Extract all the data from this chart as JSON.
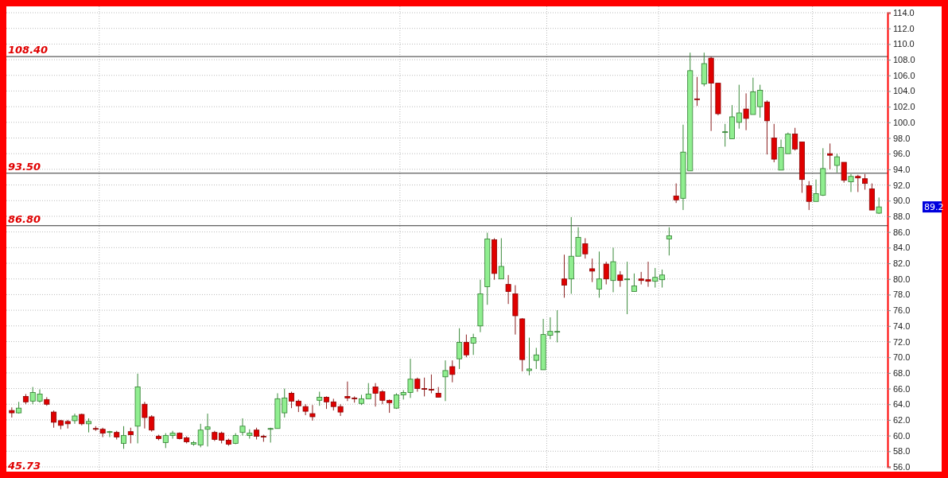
{
  "chart_data": {
    "type": "candlestick",
    "categories": [
      null,
      null,
      null,
      null,
      null,
      null,
      null,
      null,
      null,
      null,
      null,
      null,
      null,
      null,
      null,
      null,
      null,
      null,
      null,
      null,
      null,
      null,
      null,
      null,
      null,
      null,
      null,
      null,
      null,
      null,
      null,
      null,
      null,
      null,
      null,
      null,
      null,
      null,
      null,
      null,
      null,
      null,
      null,
      null,
      null,
      null,
      null,
      null,
      null,
      null,
      null,
      null,
      null,
      null,
      null,
      null,
      null,
      null,
      null,
      null,
      null,
      null,
      null,
      null,
      null,
      null,
      null,
      null,
      null,
      null,
      null,
      null,
      null,
      null,
      null,
      null,
      null,
      null,
      null,
      null,
      null,
      null,
      null,
      null,
      null,
      null,
      null,
      null,
      null,
      null,
      null,
      null,
      null,
      null,
      null,
      null,
      null,
      null,
      null,
      null,
      null,
      null,
      null,
      null,
      null,
      null,
      null,
      null,
      null,
      null,
      null,
      null,
      null,
      null,
      null,
      null,
      null,
      null,
      null,
      null,
      null,
      null,
      null,
      null,
      null
    ],
    "ohlc": [
      [
        63.2,
        63.6,
        62.3,
        62.9
      ],
      [
        62.9,
        64.3,
        62.8,
        63.5
      ],
      [
        65.0,
        65.3,
        64.0,
        64.3
      ],
      [
        64.4,
        66.2,
        64.0,
        65.5
      ],
      [
        64.4,
        65.9,
        64.2,
        65.3
      ],
      [
        64.6,
        64.9,
        63.8,
        64.0
      ],
      [
        63.0,
        63.2,
        61.0,
        61.7
      ],
      [
        61.9,
        62.0,
        60.8,
        61.3
      ],
      [
        61.8,
        62.0,
        60.9,
        61.5
      ],
      [
        61.9,
        62.8,
        61.5,
        62.5
      ],
      [
        62.7,
        62.8,
        61.3,
        61.5
      ],
      [
        61.5,
        62.2,
        60.4,
        61.8
      ],
      [
        60.9,
        61.2,
        60.6,
        60.8
      ],
      [
        60.8,
        61.0,
        59.8,
        60.3
      ],
      [
        60.4,
        60.6,
        59.8,
        60.5
      ],
      [
        60.4,
        60.6,
        59.5,
        59.8
      ],
      [
        59.0,
        61.2,
        58.3,
        60.0
      ],
      [
        60.5,
        61.0,
        59.0,
        60.1
      ],
      [
        61.2,
        67.9,
        59.0,
        66.2
      ],
      [
        64.0,
        64.3,
        60.9,
        62.3
      ],
      [
        62.4,
        62.6,
        60.5,
        60.7
      ],
      [
        59.9,
        60.1,
        59.4,
        59.6
      ],
      [
        59.1,
        60.3,
        58.4,
        60.0
      ],
      [
        60.0,
        60.6,
        59.6,
        60.3
      ],
      [
        60.3,
        60.4,
        59.5,
        59.6
      ],
      [
        59.7,
        59.9,
        59.0,
        59.2
      ],
      [
        58.9,
        59.3,
        58.7,
        59.1
      ],
      [
        58.8,
        61.5,
        58.5,
        60.7
      ],
      [
        60.8,
        62.8,
        58.6,
        61.1
      ],
      [
        60.4,
        60.6,
        59.3,
        59.5
      ],
      [
        60.3,
        60.5,
        59.0,
        59.4
      ],
      [
        59.4,
        59.6,
        58.7,
        58.9
      ],
      [
        59.0,
        60.3,
        58.9,
        60.0
      ],
      [
        60.4,
        62.2,
        60.0,
        61.2
      ],
      [
        60.0,
        60.8,
        59.6,
        60.3
      ],
      [
        60.7,
        61.0,
        59.5,
        59.9
      ],
      [
        59.9,
        60.1,
        59.2,
        59.8
      ],
      [
        60.8,
        61.0,
        59.1,
        60.9
      ],
      [
        60.9,
        65.4,
        60.9,
        64.7
      ],
      [
        62.9,
        66.0,
        62.3,
        64.8
      ],
      [
        65.4,
        65.6,
        63.5,
        64.4
      ],
      [
        64.4,
        64.6,
        63.0,
        63.8
      ],
      [
        63.7,
        64.0,
        62.6,
        63.1
      ],
      [
        62.8,
        63.9,
        61.9,
        62.4
      ],
      [
        64.5,
        65.6,
        63.8,
        64.9
      ],
      [
        64.9,
        65.0,
        63.4,
        64.3
      ],
      [
        64.3,
        64.7,
        63.2,
        63.7
      ],
      [
        63.7,
        64.0,
        62.5,
        63.0
      ],
      [
        65.0,
        66.9,
        64.4,
        64.8
      ],
      [
        64.8,
        65.0,
        64.2,
        64.7
      ],
      [
        64.1,
        65.2,
        63.9,
        64.7
      ],
      [
        64.7,
        66.7,
        64.7,
        65.3
      ],
      [
        66.2,
        66.7,
        63.7,
        65.4
      ],
      [
        65.6,
        65.8,
        64.0,
        64.5
      ],
      [
        64.5,
        64.6,
        62.9,
        64.2
      ],
      [
        63.5,
        65.4,
        63.4,
        65.2
      ],
      [
        65.2,
        65.8,
        64.6,
        65.5
      ],
      [
        65.5,
        69.8,
        64.8,
        67.2
      ],
      [
        67.2,
        67.4,
        65.6,
        66.0
      ],
      [
        66.0,
        67.4,
        65.0,
        65.9
      ],
      [
        65.9,
        67.8,
        65.4,
        65.8
      ],
      [
        65.4,
        66.2,
        64.9,
        64.9
      ],
      [
        67.5,
        69.6,
        64.4,
        68.3
      ],
      [
        68.8,
        69.6,
        66.8,
        67.8
      ],
      [
        69.8,
        73.7,
        68.5,
        71.9
      ],
      [
        71.9,
        72.9,
        70.0,
        70.3
      ],
      [
        71.8,
        73.0,
        70.3,
        72.5
      ],
      [
        74.0,
        79.9,
        73.2,
        78.1
      ],
      [
        79.0,
        85.9,
        76.7,
        85.1
      ],
      [
        85.0,
        85.2,
        79.9,
        80.7
      ],
      [
        80.0,
        85.2,
        80.0,
        81.6
      ],
      [
        79.3,
        80.5,
        76.8,
        78.4
      ],
      [
        78.1,
        79.2,
        72.9,
        75.3
      ],
      [
        74.9,
        75.0,
        68.2,
        69.7
      ],
      [
        68.3,
        72.5,
        67.7,
        68.5
      ],
      [
        69.6,
        71.2,
        68.5,
        70.3
      ],
      [
        68.4,
        74.9,
        68.4,
        72.9
      ],
      [
        72.8,
        75.1,
        72.3,
        73.3
      ],
      [
        73.2,
        76.0,
        71.9,
        73.3
      ],
      [
        80.0,
        83.1,
        77.6,
        79.2
      ],
      [
        80.0,
        87.9,
        78.1,
        82.9
      ],
      [
        82.9,
        86.6,
        82.9,
        85.3
      ],
      [
        84.5,
        85.2,
        82.6,
        83.2
      ],
      [
        81.3,
        82.6,
        79.6,
        81.0
      ],
      [
        78.7,
        83.5,
        77.6,
        80.0
      ],
      [
        81.9,
        82.2,
        79.3,
        80.0
      ],
      [
        79.8,
        84.0,
        78.3,
        82.2
      ],
      [
        80.5,
        81.0,
        79.0,
        79.8
      ],
      [
        79.9,
        82.2,
        75.5,
        80.0
      ],
      [
        78.4,
        80.7,
        78.4,
        79.1
      ],
      [
        80.0,
        80.9,
        79.3,
        79.8
      ],
      [
        79.9,
        82.2,
        79.0,
        79.7
      ],
      [
        79.7,
        81.4,
        78.9,
        80.2
      ],
      [
        79.9,
        81.2,
        78.9,
        80.5
      ],
      [
        85.1,
        86.6,
        83.0,
        85.5
      ],
      [
        90.6,
        92.2,
        89.7,
        90.1
      ],
      [
        90.3,
        99.7,
        88.8,
        96.2
      ],
      [
        93.8,
        108.9,
        93.8,
        106.6
      ],
      [
        103.0,
        105.8,
        102.1,
        102.9
      ],
      [
        104.9,
        108.9,
        104.6,
        107.5
      ],
      [
        108.2,
        108.4,
        98.9,
        105.0
      ],
      [
        105.0,
        105.0,
        100.9,
        101.1
      ],
      [
        98.7,
        99.8,
        96.9,
        98.8
      ],
      [
        97.9,
        102.2,
        97.9,
        100.7
      ],
      [
        100.0,
        104.8,
        99.2,
        101.2
      ],
      [
        101.7,
        103.7,
        99.0,
        100.5
      ],
      [
        101.0,
        105.7,
        101.0,
        103.9
      ],
      [
        102.0,
        104.8,
        100.6,
        104.1
      ],
      [
        102.6,
        102.8,
        95.9,
        100.2
      ],
      [
        98.0,
        99.8,
        94.9,
        95.3
      ],
      [
        93.9,
        97.8,
        93.9,
        96.8
      ],
      [
        96.0,
        98.7,
        96.0,
        98.5
      ],
      [
        98.5,
        99.3,
        96.4,
        96.6
      ],
      [
        97.5,
        97.5,
        91.0,
        92.7
      ],
      [
        91.9,
        92.5,
        88.8,
        89.9
      ],
      [
        89.9,
        92.7,
        89.9,
        90.9
      ],
      [
        90.7,
        96.7,
        90.6,
        94.1
      ],
      [
        96.0,
        97.3,
        94.0,
        95.8
      ],
      [
        94.5,
        96.0,
        93.6,
        95.6
      ],
      [
        94.9,
        94.9,
        92.3,
        92.6
      ],
      [
        92.4,
        93.4,
        91.1,
        93.1
      ],
      [
        93.1,
        93.3,
        91.1,
        92.9
      ],
      [
        92.8,
        93.4,
        91.4,
        92.2
      ],
      [
        91.5,
        92.2,
        88.8,
        88.8
      ],
      [
        88.4,
        90.4,
        88.3,
        89.2
      ]
    ],
    "ylim": [
      56,
      114
    ],
    "yticks": [
      {
        "value": 56,
        "label": "56.0"
      },
      {
        "value": 58,
        "label": "58.0"
      },
      {
        "value": 60,
        "label": "60.0"
      },
      {
        "value": 62,
        "label": "62.0"
      },
      {
        "value": 64,
        "label": "64.0"
      },
      {
        "value": 66,
        "label": "66.0"
      },
      {
        "value": 68,
        "label": "68.0"
      },
      {
        "value": 70,
        "label": "70.0"
      },
      {
        "value": 72,
        "label": "72.0"
      },
      {
        "value": 74,
        "label": "74.0"
      },
      {
        "value": 76,
        "label": "76.0"
      },
      {
        "value": 78,
        "label": "78.0"
      },
      {
        "value": 80,
        "label": "80.0"
      },
      {
        "value": 82,
        "label": "82.0"
      },
      {
        "value": 84,
        "label": "84.0"
      },
      {
        "value": 86,
        "label": "86.0"
      },
      {
        "value": 88,
        "label": "88.0"
      },
      {
        "value": 90,
        "label": "90.0"
      },
      {
        "value": 92,
        "label": "92.0"
      },
      {
        "value": 94,
        "label": "94.0"
      },
      {
        "value": 96,
        "label": "96.0"
      },
      {
        "value": 98,
        "label": "98.0"
      },
      {
        "value": 100,
        "label": "100.0"
      },
      {
        "value": 102,
        "label": "102.0"
      },
      {
        "value": 104,
        "label": "104.0"
      },
      {
        "value": 106,
        "label": "106.0"
      },
      {
        "value": 108,
        "label": "108.0"
      },
      {
        "value": 110,
        "label": "110.0"
      },
      {
        "value": 112,
        "label": "112.0"
      },
      {
        "value": 114,
        "label": "114.0"
      }
    ],
    "grid": "y",
    "ref_lines": [
      {
        "axis": "y",
        "value": 108.4,
        "label": "108.40",
        "color": "#333333"
      },
      {
        "axis": "y",
        "value": 93.5,
        "label": "93.50",
        "color": "#333333"
      },
      {
        "axis": "y",
        "value": 86.8,
        "label": "86.80",
        "color": "#333333"
      }
    ],
    "annotations": [
      "45.73",
      "89.2"
    ]
  }
}
